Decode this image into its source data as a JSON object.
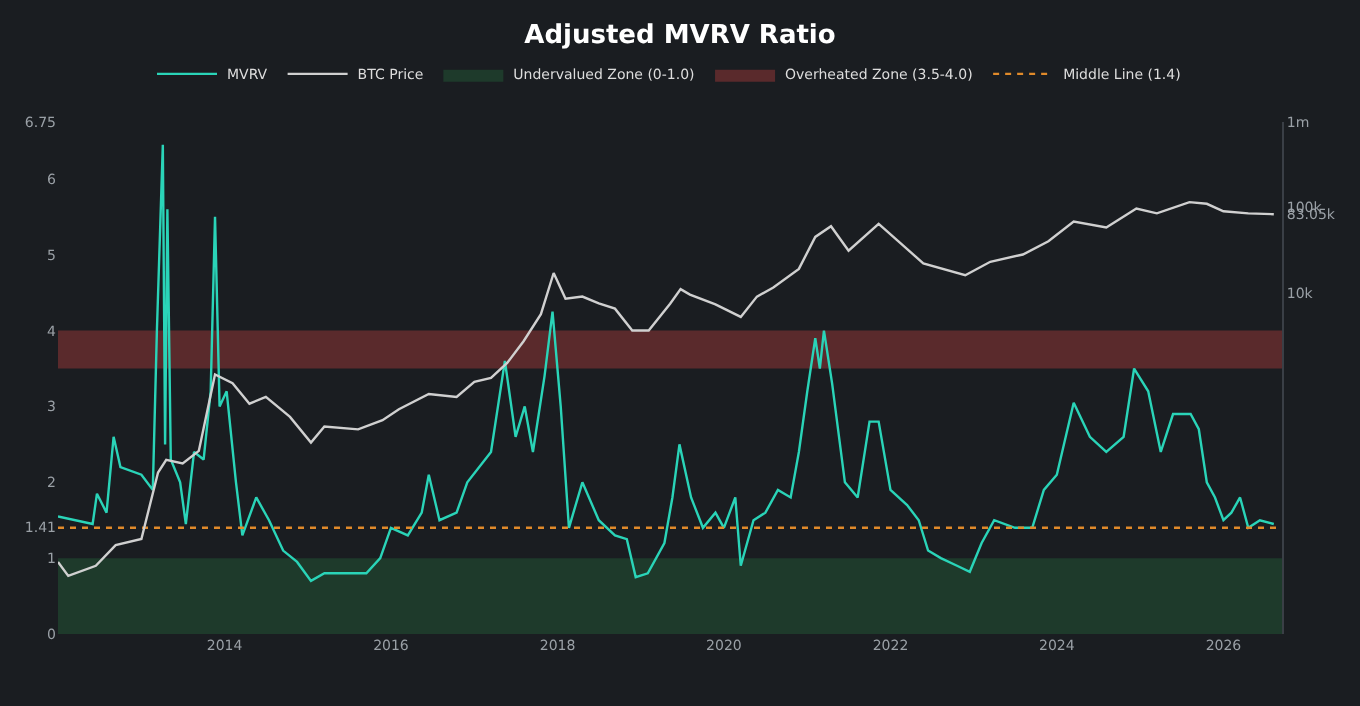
{
  "chart_data": {
    "type": "line",
    "title": "Adjusted MVRV Ratio",
    "legend": "top",
    "grid": false,
    "marker": "none",
    "log": "y2",
    "xlim": [
      "2012-01-01",
      "2026-09-15"
    ],
    "xticks": [
      {
        "value": "2014-01-01",
        "label": "2014"
      },
      {
        "value": "2016-01-01",
        "label": "2016"
      },
      {
        "value": "2018-01-01",
        "label": "2018"
      },
      {
        "value": "2020-01-01",
        "label": "2020"
      },
      {
        "value": "2022-01-01",
        "label": "2022"
      },
      {
        "value": "2024-01-01",
        "label": "2024"
      },
      {
        "value": "2026-01-01",
        "label": "2026"
      }
    ],
    "ylim": [
      0,
      6.75
    ],
    "yticks": [
      0,
      1,
      {
        "value": 1.41,
        "label": "1.41"
      },
      2,
      3,
      4,
      5,
      6,
      6.75
    ],
    "y2lim": [
      1,
      1000000
    ],
    "y2ticks": [
      {
        "value": 10000,
        "label": "10k"
      },
      {
        "value": 83050,
        "label": "83.05k"
      },
      {
        "value": 100000,
        "label": "100k"
      },
      {
        "value": 1000000,
        "label": "1m"
      }
    ],
    "series": [
      {
        "name": "MVRV",
        "color": "#2ad4b8",
        "x": [
          "2012-01-01",
          "2012-06-01",
          "2012-06-20",
          "2012-08-01",
          "2012-09-01",
          "2012-10-01",
          "2013-01-01",
          "2013-02-20",
          "2013-03-10",
          "2013-04-05",
          "2013-04-15",
          "2013-04-25",
          "2013-05-10",
          "2013-06-20",
          "2013-07-15",
          "2013-08-20",
          "2013-10-01",
          "2013-11-01",
          "2013-11-20",
          "2013-12-10",
          "2014-01-10",
          "2014-02-20",
          "2014-03-20",
          "2014-05-20",
          "2014-07-15",
          "2014-09-15",
          "2014-11-15",
          "2015-01-15",
          "2015-03-15",
          "2015-06-15",
          "2015-09-15",
          "2015-11-15",
          "2016-01-01",
          "2016-03-15",
          "2016-05-15",
          "2016-06-15",
          "2016-08-01",
          "2016-10-15",
          "2016-12-01",
          "2017-03-15",
          "2017-05-15",
          "2017-07-01",
          "2017-08-10",
          "2017-09-15",
          "2017-11-05",
          "2017-12-10",
          "2018-01-15",
          "2018-02-20",
          "2018-04-20",
          "2018-07-01",
          "2018-09-10",
          "2018-11-01",
          "2018-12-10",
          "2019-02-01",
          "2019-04-15",
          "2019-05-20",
          "2019-06-20",
          "2019-08-10",
          "2019-10-01",
          "2019-11-25",
          "2020-01-01",
          "2020-02-20",
          "2020-03-15",
          "2020-05-10",
          "2020-07-01",
          "2020-08-25",
          "2020-10-20",
          "2020-11-25",
          "2021-01-01",
          "2021-02-05",
          "2021-02-25",
          "2021-03-15",
          "2021-04-20",
          "2021-06-15",
          "2021-08-10",
          "2021-10-01",
          "2021-11-10",
          "2022-01-01",
          "2022-03-15",
          "2022-05-05",
          "2022-06-15",
          "2022-08-10",
          "2022-10-20",
          "2022-12-15",
          "2023-02-05",
          "2023-04-01",
          "2023-07-01",
          "2023-09-15",
          "2023-11-05",
          "2024-01-01",
          "2024-03-15",
          "2024-05-25",
          "2024-08-05",
          "2024-10-20",
          "2024-12-05",
          "2025-02-05",
          "2025-04-01",
          "2025-05-25",
          "2025-07-01",
          "2025-08-10",
          "2025-09-15",
          "2025-10-20",
          "2025-11-25",
          "2026-01-01",
          "2026-02-05",
          "2026-03-15",
          "2026-04-20",
          "2026-06-10",
          "2026-08-10"
        ],
        "values": [
          1.55,
          1.45,
          1.85,
          1.6,
          2.6,
          2.2,
          2.1,
          1.9,
          4.0,
          6.45,
          2.5,
          5.6,
          2.3,
          2.0,
          1.45,
          2.4,
          2.3,
          3.2,
          5.5,
          3.0,
          3.2,
          2.0,
          1.3,
          1.8,
          1.5,
          1.1,
          0.95,
          0.7,
          0.8,
          0.8,
          0.8,
          1.0,
          1.4,
          1.3,
          1.6,
          2.1,
          1.5,
          1.6,
          2.0,
          2.4,
          3.6,
          2.6,
          3.0,
          2.4,
          3.4,
          4.25,
          3.0,
          1.4,
          2.0,
          1.5,
          1.3,
          1.25,
          0.75,
          0.8,
          1.2,
          1.8,
          2.5,
          1.8,
          1.4,
          1.6,
          1.4,
          1.8,
          0.9,
          1.5,
          1.6,
          1.9,
          1.8,
          2.4,
          3.2,
          3.9,
          3.5,
          4.0,
          3.3,
          2.0,
          1.8,
          2.8,
          2.8,
          1.9,
          1.7,
          1.5,
          1.1,
          1.0,
          0.9,
          0.82,
          1.2,
          1.5,
          1.4,
          1.4,
          1.9,
          2.1,
          3.05,
          2.6,
          2.4,
          2.6,
          3.5,
          3.2,
          2.4,
          2.9,
          2.9,
          2.9,
          2.7,
          2.0,
          1.8,
          1.5,
          1.6,
          1.8,
          1.4,
          1.5,
          1.45
        ]
      },
      {
        "name": "BTC Price",
        "color": "#d0d0d0",
        "axis": "y2",
        "x": [
          "2012-01-01",
          "2012-02-15",
          "2012-06-15",
          "2012-09-10",
          "2013-01-01",
          "2013-03-15",
          "2013-04-20",
          "2013-07-01",
          "2013-09-10",
          "2013-11-20",
          "2014-02-05",
          "2014-04-20",
          "2014-07-01",
          "2014-10-15",
          "2015-01-15",
          "2015-03-15",
          "2015-08-10",
          "2015-11-25",
          "2016-02-05",
          "2016-06-15",
          "2016-10-15",
          "2017-01-01",
          "2017-03-15",
          "2017-05-25",
          "2017-08-05",
          "2017-10-20",
          "2017-12-15",
          "2018-02-05",
          "2018-04-20",
          "2018-07-01",
          "2018-09-10",
          "2018-11-25",
          "2019-02-05",
          "2019-05-10",
          "2019-06-25",
          "2019-08-05",
          "2019-11-25",
          "2020-03-15",
          "2020-05-25",
          "2020-08-05",
          "2020-11-25",
          "2021-02-05",
          "2021-04-15",
          "2021-07-01",
          "2021-11-10",
          "2022-02-05",
          "2022-05-25",
          "2022-11-25",
          "2023-03-15",
          "2023-08-05",
          "2023-11-25",
          "2024-03-15",
          "2024-08-05",
          "2024-12-15",
          "2025-03-15",
          "2025-08-05",
          "2025-10-20",
          "2026-01-01",
          "2026-04-20",
          "2026-08-10"
        ],
        "values": [
          7,
          4.8,
          6.3,
          11,
          13,
          78,
          110,
          100,
          140,
          1100,
          870,
          500,
          600,
          350,
          175,
          270,
          250,
          320,
          430,
          650,
          600,
          900,
          1000,
          1500,
          2700,
          5600,
          17000,
          8500,
          9000,
          7500,
          6500,
          3600,
          3600,
          7400,
          11000,
          9500,
          7300,
          5200,
          9000,
          11500,
          19000,
          45000,
          60000,
          31000,
          64000,
          40000,
          22000,
          16000,
          23000,
          28000,
          40000,
          68000,
          58000,
          97000,
          85000,
          115000,
          110000,
          90000,
          85000,
          83058
        ]
      }
    ],
    "bands": [
      {
        "axis": "y",
        "from": 0,
        "to": 1.0,
        "label": "Undervalued Zone (0-1.0)",
        "color": "#1e3a2b"
      },
      {
        "axis": "y",
        "from": 3.5,
        "to": 4.0,
        "label": "Overheated Zone (3.5-4.0)",
        "color": "#5a2a2c"
      }
    ],
    "ref_lines": [
      {
        "axis": "y",
        "value": 1.4,
        "label": "Middle Line (1.4)",
        "color": "#e08a2a",
        "line_style": "dotted"
      }
    ]
  }
}
